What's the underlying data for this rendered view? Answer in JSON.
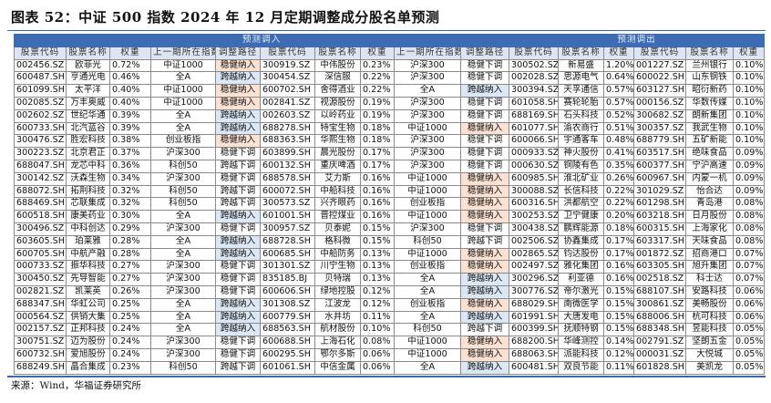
{
  "title": "图表 52：中证 500 指数 2024 年 12 月定期调整成分股名单预测",
  "source": "来源：Wind，华福证券研究所",
  "bands": {
    "in": "预测调入",
    "out": "预测调出"
  },
  "headers_in": [
    "股票代码",
    "股票名称",
    "权重",
    "上一期所在指数",
    "调整路径"
  ],
  "headers_out": [
    "股票代码",
    "股票名称",
    "权重"
  ],
  "colors": {
    "band": "#3e6cb4",
    "header": "#dce5f1",
    "稳健纳入": "#fbe1d2",
    "跨越纳入": "#dbe7f4"
  },
  "in_left": [
    [
      "002456.SZ",
      "欧菲光",
      "0.72%",
      "中证1000",
      "稳健纳入"
    ],
    [
      "600487.SH",
      "亨通光电",
      "0.46%",
      "全A",
      "跨越纳入"
    ],
    [
      "601099.SH",
      "太平洋",
      "0.40%",
      "中证1000",
      "稳健纳入"
    ],
    [
      "002085.SZ",
      "万丰奥威",
      "0.40%",
      "中证1000",
      "稳健纳入"
    ],
    [
      "002602.SZ",
      "世纪华通",
      "0.39%",
      "全A",
      "跨越纳入"
    ],
    [
      "600733.SH",
      "北汽蓝谷",
      "0.39%",
      "全A",
      "跨越纳入"
    ],
    [
      "300476.SZ",
      "胜宏科技",
      "0.38%",
      "创业板指",
      "稳健纳入"
    ],
    [
      "300223.SZ",
      "北京君正",
      "0.37%",
      "沪深300",
      "稳健下调"
    ],
    [
      "688047.SH",
      "龙芯中科",
      "0.36%",
      "科创50",
      "跨越下调"
    ],
    [
      "300142.SZ",
      "沃森生物",
      "0.34%",
      "沪深300",
      "稳健下调"
    ],
    [
      "688072.SH",
      "拓荆科技",
      "0.32%",
      "科创50",
      "跨越下调"
    ],
    [
      "688469.SH",
      "芯联集成",
      "0.32%",
      "科创50",
      "跨越下调"
    ],
    [
      "600518.SH",
      "康美药业",
      "0.30%",
      "全A",
      "跨越纳入"
    ],
    [
      "300496.SZ",
      "中科创达",
      "0.29%",
      "沪深300",
      "稳健下调"
    ],
    [
      "603605.SH",
      "珀莱雅",
      "0.28%",
      "全A",
      "跨越纳入"
    ],
    [
      "600705.SH",
      "中航产融",
      "0.28%",
      "全A",
      "跨越纳入"
    ],
    [
      "000733.SZ",
      "振华科技",
      "0.27%",
      "沪深300",
      "稳健下调"
    ],
    [
      "300450.SZ",
      "先导智能",
      "0.27%",
      "沪深300",
      "稳健下调"
    ],
    [
      "002821.SZ",
      "凯莱英",
      "0.26%",
      "沪深300",
      "稳健下调"
    ],
    [
      "688347.SH",
      "华虹公司",
      "0.25%",
      "全A",
      "跨越纳入"
    ],
    [
      "000564.SZ",
      "供销大集",
      "0.25%",
      "全A",
      "跨越纳入"
    ],
    [
      "002157.SZ",
      "正邦科技",
      "0.24%",
      "全A",
      "跨越纳入"
    ],
    [
      "300751.SZ",
      "迈为股份",
      "0.24%",
      "沪深300",
      "稳健下调"
    ],
    [
      "600732.SH",
      "爱旭股份",
      "0.24%",
      "沪深300",
      "稳健下调"
    ],
    [
      "688249.SH",
      "晶合集成",
      "0.23%",
      "科创50",
      "跨越下调"
    ]
  ],
  "in_mid": [
    [
      "300919.SZ",
      "中伟股份",
      "0.23%",
      "沪深300",
      "稳健下调"
    ],
    [
      "300454.SZ",
      "深信服",
      "0.22%",
      "沪深300",
      "稳健下调"
    ],
    [
      "600702.SH",
      "舍得酒业",
      "0.22%",
      "全A",
      "跨越纳入"
    ],
    [
      "002841.SZ",
      "视源股份",
      "0.19%",
      "沪深300",
      "稳健下调"
    ],
    [
      "002603.SZ",
      "以岭药业",
      "0.19%",
      "沪深300",
      "稳健下调"
    ],
    [
      "688278.SH",
      "特宝生物",
      "0.18%",
      "中证1000",
      "稳健纳入"
    ],
    [
      "688363.SH",
      "华熙生物",
      "0.18%",
      "沪深300",
      "稳健下调"
    ],
    [
      "603899.SH",
      "晨光股份",
      "0.17%",
      "沪深300",
      "稳健下调"
    ],
    [
      "600132.SH",
      "重庆啤酒",
      "0.17%",
      "沪深300",
      "稳健下调"
    ],
    [
      "688578.SH",
      "艾力斯",
      "0.16%",
      "中证1000",
      "稳健纳入"
    ],
    [
      "600072.SH",
      "中船科技",
      "0.16%",
      "中证1000",
      "稳健纳入"
    ],
    [
      "300573.SZ",
      "兴齐眼药",
      "0.16%",
      "创业板指",
      "稳健纳入"
    ],
    [
      "601001.SH",
      "晋控煤业",
      "0.16%",
      "中证1000",
      "稳健纳入"
    ],
    [
      "300957.SZ",
      "贝泰妮",
      "0.15%",
      "沪深300",
      "稳健下调"
    ],
    [
      "688728.SH",
      "格科微",
      "0.15%",
      "科创50",
      "跨越下调"
    ],
    [
      "600685.SH",
      "中船防务",
      "0.13%",
      "中证1000",
      "稳健纳入"
    ],
    [
      "301301.SZ",
      "川宁生物",
      "0.13%",
      "创业板指",
      "稳健纳入"
    ],
    [
      "835185.BJ",
      "贝特瑞",
      "0.13%",
      "全A",
      "跨越纳入"
    ],
    [
      "600606.SH",
      "绿地控股",
      "0.12%",
      "全A",
      "跨越纳入"
    ],
    [
      "301308.SZ",
      "江波龙",
      "0.12%",
      "创业板指",
      "稳健纳入"
    ],
    [
      "600779.SH",
      "水井坊",
      "0.11%",
      "全A",
      "跨越纳入"
    ],
    [
      "688563.SH",
      "航材股份",
      "0.10%",
      "科创50",
      "跨越下调"
    ],
    [
      "600688.SH",
      "上海石化",
      "0.08%",
      "中证1000",
      "稳健纳入"
    ],
    [
      "600295.SH",
      "鄂尔多斯",
      "0.06%",
      "中证1000",
      "稳健纳入"
    ],
    [
      "601061.SH",
      "中信金属",
      "0.06%",
      "全A",
      "跨越纳入"
    ]
  ],
  "out_left": [
    [
      "300502.SZ",
      "新易盛",
      "1.20%"
    ],
    [
      "002028.SZ",
      "思源电气",
      "0.64%"
    ],
    [
      "300394.SZ",
      "天孚通信",
      "0.57%"
    ],
    [
      "601058.SH",
      "赛轮轮胎",
      "0.57%"
    ],
    [
      "688169.SH",
      "石头科技",
      "0.52%"
    ],
    [
      "601077.SH",
      "渝农商行",
      "0.51%"
    ],
    [
      "600066.SH",
      "宇通客车",
      "0.48%"
    ],
    [
      "000933.SZ",
      "神火股份",
      "0.41%"
    ],
    [
      "000630.SZ",
      "铜陵有色",
      "0.35%"
    ],
    [
      "600985.SH",
      "淮北矿业",
      "0.26%"
    ],
    [
      "300088.SZ",
      "长信科技",
      "0.22%"
    ],
    [
      "600316.SH",
      "洪都航空",
      "0.22%"
    ],
    [
      "300253.SZ",
      "卫宁健康",
      "0.20%"
    ],
    [
      "300438.SZ",
      "鹏辉能源",
      "0.18%"
    ],
    [
      "002506.SZ",
      "协鑫集成",
      "0.17%"
    ],
    [
      "002865.SZ",
      "钧达股份",
      "0.17%"
    ],
    [
      "002497.SZ",
      "雅化集团",
      "0.16%"
    ],
    [
      "300296.SZ",
      "利亚德",
      "0.16%"
    ],
    [
      "300776.SZ",
      "帝尔激光",
      "0.15%"
    ],
    [
      "688029.SH",
      "南微医学",
      "0.15%"
    ],
    [
      "601991.SH",
      "大唐发电",
      "0.15%"
    ],
    [
      "600399.SH",
      "抚顺特钢",
      "0.15%"
    ],
    [
      "688200.SH",
      "华峰测控",
      "0.14%"
    ],
    [
      "688063.SH",
      "派能科技",
      "0.12%"
    ],
    [
      "600481.SH",
      "双良节能",
      "0.11%"
    ]
  ],
  "out_right": [
    [
      "001227.SZ",
      "兰州银行",
      "0.10%"
    ],
    [
      "600022.SH",
      "山东钢铁",
      "0.10%"
    ],
    [
      "603127.SH",
      "昭衍新药",
      "0.10%"
    ],
    [
      "000156.SZ",
      "华数传媒",
      "0.10%"
    ],
    [
      "300682.SZ",
      "朗新集团",
      "0.10%"
    ],
    [
      "300357.SZ",
      "我武生物",
      "0.10%"
    ],
    [
      "688779.SH",
      "五矿新能",
      "0.10%"
    ],
    [
      "603517.SH",
      "绝味食品",
      "0.09%"
    ],
    [
      "600377.SH",
      "宁沪高速",
      "0.09%"
    ],
    [
      "600967.SH",
      "内蒙一机",
      "0.09%"
    ],
    [
      "301029.SZ",
      "怡合达",
      "0.09%"
    ],
    [
      "601298.SH",
      "青岛港",
      "0.08%"
    ],
    [
      "603218.SH",
      "日月股份",
      "0.08%"
    ],
    [
      "600315.SH",
      "上海家化",
      "0.08%"
    ],
    [
      "603317.SH",
      "天味食品",
      "0.08%"
    ],
    [
      "001872.SZ",
      "招商港口",
      "0.07%"
    ],
    [
      "603305.SH",
      "旭升集团",
      "0.07%"
    ],
    [
      "002518.SZ",
      "科士达",
      "0.07%"
    ],
    [
      "688107.SH",
      "安路科技",
      "0.06%"
    ],
    [
      "300861.SZ",
      "美畅股份",
      "0.06%"
    ],
    [
      "688006.SH",
      "杭可科技",
      "0.06%"
    ],
    [
      "688348.SH",
      "昱能科技",
      "0.05%"
    ],
    [
      "002791.SZ",
      "坚朗五金",
      "0.05%"
    ],
    [
      "000031.SZ",
      "大悦城",
      "0.05%"
    ],
    [
      "601828.SH",
      "美凯龙",
      "0.05%"
    ]
  ]
}
